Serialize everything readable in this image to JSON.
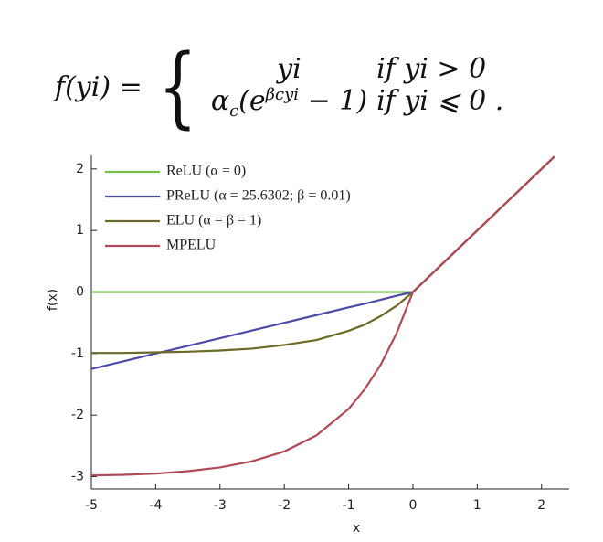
{
  "formula": {
    "lhs": "f(yi) =",
    "row1": {
      "expr": "yi",
      "cond": "if yi > 0"
    },
    "row2": {
      "alpha": "α",
      "alpha_sub": "c",
      "open": "(e",
      "exponent": "βcyi",
      "close": "− 1)",
      "cond": "if yi ⩽ 0 ."
    }
  },
  "chart_data": {
    "type": "line",
    "xlabel": "x",
    "ylabel": "f(x)",
    "x": [
      -5,
      -4.5,
      -4,
      -3.5,
      -3,
      -2.5,
      -2,
      -1.5,
      -1,
      -0.75,
      -0.5,
      -0.25,
      0,
      0.5,
      1,
      1.5,
      2,
      2.2
    ],
    "series": [
      {
        "name": "ReLU (α = 0)",
        "color": "#78c04c",
        "values": [
          0,
          0,
          0,
          0,
          0,
          0,
          0,
          0,
          0,
          0,
          0,
          0,
          0,
          0.5,
          1,
          1.5,
          2,
          2.2
        ]
      },
      {
        "name": "PReLU (α = 25.6302; β = 0.01)",
        "color": "#4d4aa8",
        "values": [
          -1.25,
          -1.125,
          -1,
          -0.875,
          -0.75,
          -0.625,
          -0.5,
          -0.375,
          -0.25,
          -0.19,
          -0.125,
          -0.06,
          0,
          0.5,
          1,
          1.5,
          2,
          2.2
        ]
      },
      {
        "name": "ELU (α = β = 1)",
        "color": "#6b6a26",
        "values": [
          -0.99,
          -0.99,
          -0.98,
          -0.97,
          -0.95,
          -0.92,
          -0.86,
          -0.78,
          -0.63,
          -0.53,
          -0.39,
          -0.22,
          0,
          0.5,
          1,
          1.5,
          2,
          2.2
        ]
      },
      {
        "name": "MPELU",
        "color": "#b04a58",
        "values": [
          -2.98,
          -2.97,
          -2.95,
          -2.91,
          -2.85,
          -2.75,
          -2.59,
          -2.33,
          -1.9,
          -1.58,
          -1.18,
          -0.66,
          0,
          0.5,
          1,
          1.5,
          2,
          2.2
        ]
      }
    ],
    "xlim": [
      -5,
      2.43
    ],
    "ylim": [
      -3.2,
      2.22
    ],
    "xticks": [
      -5,
      -4,
      -3,
      -2,
      -1,
      0,
      1,
      2
    ],
    "yticks": [
      -3,
      -2,
      -1,
      0,
      1,
      2
    ],
    "legend": "upper left"
  }
}
